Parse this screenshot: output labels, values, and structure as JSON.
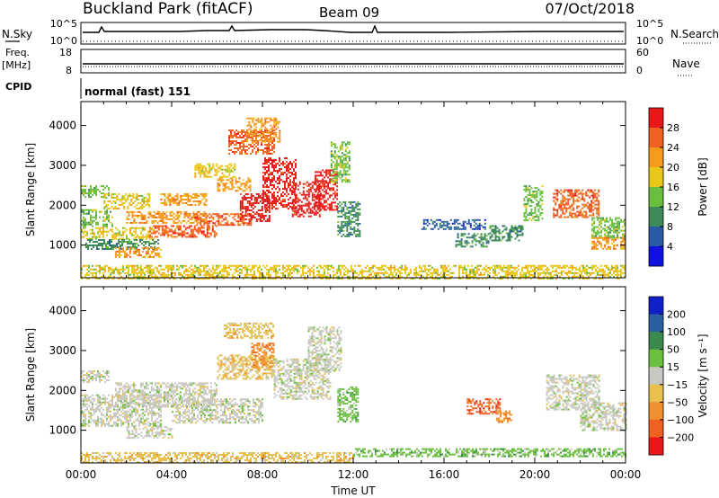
{
  "header": {
    "site": "Buckland Park (fitACF)",
    "beam": "Beam 09",
    "date": "07/Oct/2018"
  },
  "status_panels": {
    "nsky_label": "N.Sky",
    "nsearch_label": "N.Search",
    "freq_label": "Freq.",
    "freq_unit": "[MHz]",
    "nave_label": "Nave",
    "cpid_label": "CPID",
    "cpid_value": "normal (fast) 151",
    "left_ticks_noise": [
      "10^5",
      "10^0"
    ],
    "right_ticks_noise": [
      "10^5",
      "10^0"
    ],
    "left_ticks_freq": [
      "18",
      "8"
    ],
    "right_ticks_nave": [
      "60",
      "0"
    ]
  },
  "chart_data": [
    {
      "type": "heatmap",
      "name": "power-panel",
      "xlabel": "",
      "ylabel": "Slant Range [km]",
      "xlim": [
        0,
        24
      ],
      "ylim": [
        180,
        4600
      ],
      "yticks": [
        1000,
        2000,
        3000,
        4000
      ],
      "colorbar": {
        "label": "Power [dB]",
        "ticks": [
          "4",
          "8",
          "12",
          "16",
          "20",
          "24",
          "28"
        ],
        "colors": [
          "#1010e0",
          "#2a5aa6",
          "#3f8a5a",
          "#6abf3f",
          "#e8c81a",
          "#f59a1a",
          "#f06020",
          "#e81818"
        ]
      },
      "echo_regions": [
        {
          "t0": 0.0,
          "t1": 1.2,
          "r0": 2200,
          "r1": 2500,
          "c": 3
        },
        {
          "t0": 0.0,
          "t1": 1.4,
          "r0": 1450,
          "r1": 1900,
          "c": 3
        },
        {
          "t0": 0.0,
          "t1": 3.2,
          "r0": 1150,
          "r1": 1450,
          "c": 4
        },
        {
          "t0": 0.2,
          "t1": 3.4,
          "r0": 900,
          "r1": 1150,
          "c": 2
        },
        {
          "t0": 1.0,
          "t1": 3.0,
          "r0": 1900,
          "r1": 2300,
          "c": 4
        },
        {
          "t0": 1.5,
          "t1": 3.5,
          "r0": 700,
          "r1": 950,
          "c": 5
        },
        {
          "t0": 2.0,
          "t1": 5.5,
          "r0": 1550,
          "r1": 1850,
          "c": 5
        },
        {
          "t0": 3.0,
          "t1": 6.0,
          "r0": 1200,
          "r1": 1500,
          "c": 6
        },
        {
          "t0": 3.5,
          "t1": 5.5,
          "r0": 2000,
          "r1": 2300,
          "c": 5
        },
        {
          "t0": 5.0,
          "t1": 7.5,
          "r0": 1500,
          "r1": 1800,
          "c": 6
        },
        {
          "t0": 6.0,
          "t1": 7.5,
          "r0": 2350,
          "r1": 2700,
          "c": 5
        },
        {
          "t0": 5.0,
          "t1": 6.8,
          "r0": 2700,
          "r1": 3050,
          "c": 4
        },
        {
          "t0": 7.0,
          "t1": 8.3,
          "r0": 1600,
          "r1": 2300,
          "c": 7
        },
        {
          "t0": 8.0,
          "t1": 9.5,
          "r0": 1900,
          "r1": 3200,
          "c": 7
        },
        {
          "t0": 9.3,
          "t1": 10.5,
          "r0": 1700,
          "r1": 2600,
          "c": 7
        },
        {
          "t0": 10.3,
          "t1": 11.3,
          "r0": 1900,
          "r1": 2900,
          "c": 7
        },
        {
          "t0": 6.5,
          "t1": 8.5,
          "r0": 3300,
          "r1": 3900,
          "c": 6
        },
        {
          "t0": 7.3,
          "t1": 8.8,
          "r0": 3600,
          "r1": 4200,
          "c": 5
        },
        {
          "t0": 11.0,
          "t1": 11.8,
          "r0": 2600,
          "r1": 3600,
          "c": 3
        },
        {
          "t0": 11.3,
          "t1": 12.3,
          "r0": 1200,
          "r1": 2100,
          "c": 2
        },
        {
          "t0": 15.0,
          "t1": 17.8,
          "r0": 1400,
          "r1": 1650,
          "c": 1
        },
        {
          "t0": 16.5,
          "t1": 18.0,
          "r0": 950,
          "r1": 1300,
          "c": 2
        },
        {
          "t0": 18.0,
          "t1": 19.5,
          "r0": 1100,
          "r1": 1500,
          "c": 2
        },
        {
          "t0": 19.5,
          "t1": 20.3,
          "r0": 1600,
          "r1": 2500,
          "c": 3
        },
        {
          "t0": 20.8,
          "t1": 22.8,
          "r0": 1700,
          "r1": 2400,
          "c": 6
        },
        {
          "t0": 22.5,
          "t1": 24.0,
          "r0": 1200,
          "r1": 1700,
          "c": 3
        },
        {
          "t0": 22.5,
          "t1": 24.0,
          "r0": 900,
          "r1": 1200,
          "c": 5
        },
        {
          "t0": 0.0,
          "t1": 24.0,
          "r0": 180,
          "r1": 500,
          "c": 4
        }
      ]
    },
    {
      "type": "heatmap",
      "name": "velocity-panel",
      "xlabel": "Time UT",
      "ylabel": "Slant Range [km]",
      "xlim": [
        0,
        24
      ],
      "ylim": [
        180,
        4600
      ],
      "xticks": [
        "00:00",
        "04:00",
        "08:00",
        "12:00",
        "16:00",
        "20:00",
        "00:00"
      ],
      "yticks": [
        1000,
        2000,
        3000,
        4000
      ],
      "colorbar": {
        "label": "Velocity [m s⁻¹]",
        "ticks": [
          "200",
          "100",
          "50",
          "15",
          "−15",
          "−50",
          "−100",
          "−200"
        ],
        "colors": [
          "#1020c8",
          "#2a60a0",
          "#3a8a50",
          "#6cc040",
          "#c8c8c0",
          "#e8c050",
          "#f09030",
          "#f06020",
          "#e81818"
        ]
      },
      "echo_regions": [
        {
          "t0": 0.0,
          "t1": 3.5,
          "r0": 1100,
          "r1": 1900,
          "c": 4
        },
        {
          "t0": 0.0,
          "t1": 1.2,
          "r0": 2200,
          "r1": 2500,
          "c": 4
        },
        {
          "t0": 1.5,
          "t1": 6.0,
          "r0": 1600,
          "r1": 2200,
          "c": 4
        },
        {
          "t0": 2.0,
          "t1": 4.0,
          "r0": 800,
          "r1": 1100,
          "c": 4
        },
        {
          "t0": 4.0,
          "t1": 8.0,
          "r0": 1200,
          "r1": 1800,
          "c": 4
        },
        {
          "t0": 6.0,
          "t1": 8.5,
          "r0": 2300,
          "r1": 2900,
          "c": 5
        },
        {
          "t0": 7.5,
          "t1": 8.5,
          "r0": 2600,
          "r1": 3200,
          "c": 6
        },
        {
          "t0": 6.3,
          "t1": 8.5,
          "r0": 3300,
          "r1": 3700,
          "c": 5
        },
        {
          "t0": 8.5,
          "t1": 11.0,
          "r0": 1800,
          "r1": 2800,
          "c": 4
        },
        {
          "t0": 10.0,
          "t1": 11.5,
          "r0": 2500,
          "r1": 3600,
          "c": 4
        },
        {
          "t0": 11.3,
          "t1": 12.2,
          "r0": 1200,
          "r1": 2100,
          "c": 3
        },
        {
          "t0": 17.0,
          "t1": 18.5,
          "r0": 1400,
          "r1": 1800,
          "c": 7
        },
        {
          "t0": 18.3,
          "t1": 19.0,
          "r0": 1200,
          "r1": 1500,
          "c": 6
        },
        {
          "t0": 20.5,
          "t1": 22.8,
          "r0": 1500,
          "r1": 2400,
          "c": 4
        },
        {
          "t0": 22.0,
          "t1": 24.0,
          "r0": 1000,
          "r1": 1700,
          "c": 4
        },
        {
          "t0": 0.0,
          "t1": 12.0,
          "r0": 180,
          "r1": 450,
          "c": 5
        },
        {
          "t0": 12.0,
          "t1": 24.0,
          "r0": 350,
          "r1": 550,
          "c": 3
        }
      ]
    }
  ]
}
